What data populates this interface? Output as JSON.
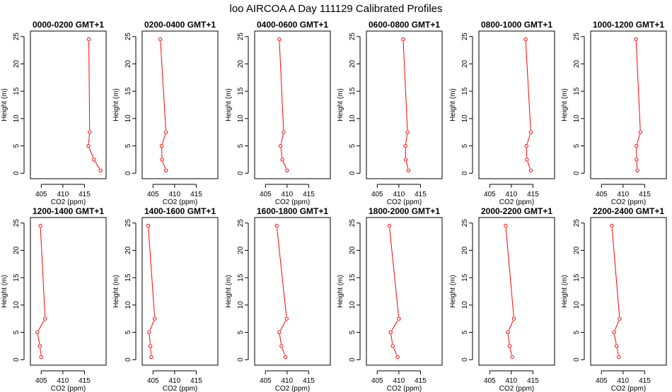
{
  "title": "loo AIRCOA A  Day 111129  Calibrated Profiles",
  "colors": {
    "line": "#ff0000",
    "axis": "#000000",
    "background": "#ffffff"
  },
  "chart_data": [
    {
      "type": "line",
      "title": "0000-0200 GMT+1",
      "xlabel": "CO2 (ppm)",
      "ylabel": "Height (m)",
      "xlim": [
        402.5,
        420
      ],
      "ylim": [
        0,
        25
      ],
      "xticks": [
        405,
        410,
        415
      ],
      "yticks": [
        0,
        5,
        10,
        15,
        20,
        25
      ],
      "series": [
        {
          "x": [
            418.7,
            417.2,
            415.9,
            416.2,
            416.0
          ],
          "y": [
            0.5,
            2.5,
            5,
            7.5,
            24.5
          ]
        }
      ]
    },
    {
      "type": "line",
      "title": "0200-0400 GMT+1",
      "xlabel": "CO2 (ppm)",
      "ylabel": "Height (m)",
      "xlim": [
        402.5,
        420
      ],
      "ylim": [
        0,
        25
      ],
      "xticks": [
        405,
        410,
        415
      ],
      "yticks": [
        0,
        5,
        10,
        15,
        20,
        25
      ],
      "series": [
        {
          "x": [
            408.0,
            407.1,
            407.0,
            408.0,
            406.7
          ],
          "y": [
            0.5,
            2.5,
            5,
            7.5,
            24.5
          ]
        }
      ]
    },
    {
      "type": "line",
      "title": "0400-0600 GMT+1",
      "xlabel": "CO2 (ppm)",
      "ylabel": "Height (m)",
      "xlim": [
        402.5,
        420
      ],
      "ylim": [
        0,
        25
      ],
      "xticks": [
        405,
        410,
        415
      ],
      "yticks": [
        0,
        5,
        10,
        15,
        20,
        25
      ],
      "series": [
        {
          "x": [
            410.0,
            408.9,
            408.5,
            409.2,
            408.2
          ],
          "y": [
            0.5,
            2.5,
            5,
            7.5,
            24.5
          ]
        }
      ]
    },
    {
      "type": "line",
      "title": "0600-0800 GMT+1",
      "xlabel": "CO2 (ppm)",
      "ylabel": "Height (m)",
      "xlim": [
        402.5,
        420
      ],
      "ylim": [
        0,
        25
      ],
      "xticks": [
        405,
        410,
        415
      ],
      "yticks": [
        0,
        5,
        10,
        15,
        20,
        25
      ],
      "series": [
        {
          "x": [
            412.2,
            411.6,
            411.5,
            412.0,
            411.0
          ],
          "y": [
            0.5,
            2.5,
            5,
            7.5,
            24.5
          ]
        }
      ]
    },
    {
      "type": "line",
      "title": "0800-1000 GMT+1",
      "xlabel": "CO2 (ppm)",
      "ylabel": "Height (m)",
      "xlim": [
        402.5,
        420
      ],
      "ylim": [
        0,
        25
      ],
      "xticks": [
        405,
        410,
        415
      ],
      "yticks": [
        0,
        5,
        10,
        15,
        20,
        25
      ],
      "series": [
        {
          "x": [
            414.5,
            413.6,
            413.5,
            414.5,
            413.3
          ],
          "y": [
            0.5,
            2.5,
            5,
            7.5,
            24.5
          ]
        }
      ]
    },
    {
      "type": "line",
      "title": "1000-1200 GMT+1",
      "xlabel": "CO2 (ppm)",
      "ylabel": "Height (m)",
      "xlim": [
        402.5,
        420
      ],
      "ylim": [
        0,
        25
      ],
      "xticks": [
        405,
        410,
        415
      ],
      "yticks": [
        0,
        5,
        10,
        15,
        20,
        25
      ],
      "series": [
        {
          "x": [
            413.3,
            413.1,
            413.1,
            414.0,
            413.0
          ],
          "y": [
            0.5,
            2.5,
            5,
            7.5,
            24.5
          ]
        }
      ]
    },
    {
      "type": "line",
      "title": "1200-1400 GMT+1",
      "xlabel": "CO2 (ppm)",
      "ylabel": "Height (m)",
      "xlim": [
        402.5,
        420
      ],
      "ylim": [
        0,
        25
      ],
      "xticks": [
        405,
        410,
        415
      ],
      "yticks": [
        0,
        5,
        10,
        15,
        20,
        25
      ],
      "series": [
        {
          "x": [
            405.0,
            404.7,
            404.1,
            405.9,
            404.8
          ],
          "y": [
            0.5,
            2.5,
            5,
            7.5,
            24.5
          ]
        }
      ]
    },
    {
      "type": "line",
      "title": "1400-1600 GMT+1",
      "xlabel": "CO2 (ppm)",
      "ylabel": "Height (m)",
      "xlim": [
        402.5,
        420
      ],
      "ylim": [
        0,
        25
      ],
      "xticks": [
        405,
        410,
        415
      ],
      "yticks": [
        0,
        5,
        10,
        15,
        20,
        25
      ],
      "series": [
        {
          "x": [
            404.6,
            404.4,
            404.1,
            405.4,
            403.9
          ],
          "y": [
            0.5,
            2.5,
            5,
            7.5,
            24.5
          ]
        }
      ]
    },
    {
      "type": "line",
      "title": "1600-1800 GMT+1",
      "xlabel": "CO2 (ppm)",
      "ylabel": "Height (m)",
      "xlim": [
        402.5,
        420
      ],
      "ylim": [
        0,
        25
      ],
      "xticks": [
        405,
        410,
        415
      ],
      "yticks": [
        0,
        5,
        10,
        15,
        20,
        25
      ],
      "series": [
        {
          "x": [
            409.6,
            408.7,
            408.2,
            409.9,
            407.6
          ],
          "y": [
            0.5,
            2.5,
            5,
            7.5,
            24.5
          ]
        }
      ]
    },
    {
      "type": "line",
      "title": "1800-2000 GMT+1",
      "xlabel": "CO2 (ppm)",
      "ylabel": "Height (m)",
      "xlim": [
        402.5,
        420
      ],
      "ylim": [
        0,
        25
      ],
      "xticks": [
        405,
        410,
        415
      ],
      "yticks": [
        0,
        5,
        10,
        15,
        20,
        25
      ],
      "series": [
        {
          "x": [
            409.7,
            408.6,
            408.1,
            410.0,
            407.8
          ],
          "y": [
            0.5,
            2.5,
            5,
            7.5,
            24.5
          ]
        }
      ]
    },
    {
      "type": "line",
      "title": "2000-2200 GMT+1",
      "xlabel": "CO2 (ppm)",
      "ylabel": "Height (m)",
      "xlim": [
        402.5,
        420
      ],
      "ylim": [
        0,
        25
      ],
      "xticks": [
        405,
        410,
        415
      ],
      "yticks": [
        0,
        5,
        10,
        15,
        20,
        25
      ],
      "series": [
        {
          "x": [
            410.2,
            409.6,
            409.2,
            410.6,
            408.7
          ],
          "y": [
            0.5,
            2.5,
            5,
            7.5,
            24.5
          ]
        }
      ]
    },
    {
      "type": "line",
      "title": "2200-2400 GMT+1",
      "xlabel": "CO2 (ppm)",
      "ylabel": "Height (m)",
      "xlim": [
        402.5,
        420
      ],
      "ylim": [
        0,
        25
      ],
      "xticks": [
        405,
        410,
        415
      ],
      "yticks": [
        0,
        5,
        10,
        15,
        20,
        25
      ],
      "series": [
        {
          "x": [
            409.0,
            408.5,
            407.9,
            409.2,
            407.4
          ],
          "y": [
            0.5,
            2.5,
            5,
            7.5,
            24.5
          ]
        }
      ]
    }
  ]
}
